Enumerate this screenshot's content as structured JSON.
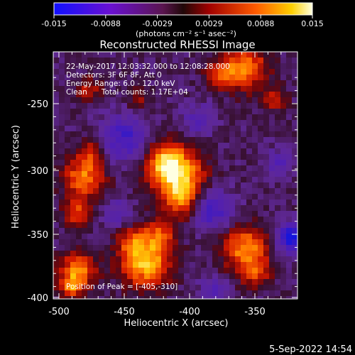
{
  "colorbar": {
    "tick_labels": [
      "-0.015",
      "-0.0088",
      "-0.0029",
      "0.0029",
      "0.0088",
      "0.015"
    ],
    "units_label": "(photons cm⁻² s⁻¹ asec⁻²)"
  },
  "image": {
    "title": "Reconstructed RHESSI Image",
    "info_lines": [
      "22-May-2017 12:03:32.000 to 12:08:28.000",
      "Detectors: 3F 6F 8F, Att 0",
      "Energy Range: 6.0 - 12.0 keV",
      "Clean      Total counts: 1.17E+04"
    ],
    "peak_text": "Position of Peak = [-405,-310]",
    "x_axis": {
      "label": "Heliocentric X (arcsec)",
      "ticks": [
        "-500",
        "-450",
        "-400",
        "-350"
      ]
    },
    "y_axis": {
      "label": "Heliocentric Y (arcsec)",
      "ticks": [
        "-250",
        "-300",
        "-350",
        "-400"
      ]
    }
  },
  "footer": {
    "date_text": "5-Sep-2022 14:54"
  }
}
